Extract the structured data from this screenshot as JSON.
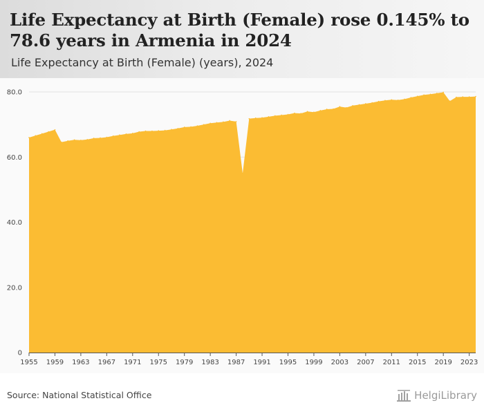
{
  "header": {
    "title": "Life Expectancy at Birth (Female) rose 0.145% to 78.6 years in Armenia in 2024",
    "subtitle": "Life Expectancy at Birth (Female) (years), 2024"
  },
  "footer": {
    "source": "Source: National Statistical Office",
    "brand": "HelgiLibrary"
  },
  "colors": {
    "area": "#FBBC33",
    "grid": "#e3e3e3",
    "axis": "#555555"
  },
  "chart_data": {
    "type": "area",
    "title": "Life Expectancy at Birth (Female) rose 0.145% to 78.6 years in Armenia in 2024",
    "subtitle": "Life Expectancy at Birth (Female) (years), 2024",
    "xlabel": "",
    "ylabel": "",
    "ylim": [
      0,
      80
    ],
    "yticks": [
      0,
      20,
      40,
      60,
      80
    ],
    "ytick_labels": [
      "0",
      "20.0",
      "40.0",
      "60.0",
      "80.0"
    ],
    "xticks": [
      1955,
      1959,
      1963,
      1967,
      1971,
      1975,
      1979,
      1983,
      1987,
      1991,
      1995,
      1999,
      2003,
      2007,
      2011,
      2015,
      2019,
      2023
    ],
    "grid": true,
    "series": [
      {
        "name": "Life Expectancy at Birth (Female)",
        "x": [
          1955,
          1956,
          1957,
          1958,
          1959,
          1960,
          1961,
          1962,
          1963,
          1964,
          1965,
          1966,
          1967,
          1968,
          1969,
          1970,
          1971,
          1972,
          1973,
          1974,
          1975,
          1976,
          1977,
          1978,
          1979,
          1980,
          1981,
          1982,
          1983,
          1984,
          1985,
          1986,
          1987,
          1988,
          1989,
          1990,
          1991,
          1992,
          1993,
          1994,
          1995,
          1996,
          1997,
          1998,
          1999,
          2000,
          2001,
          2002,
          2003,
          2004,
          2005,
          2006,
          2007,
          2008,
          2009,
          2010,
          2011,
          2012,
          2013,
          2014,
          2015,
          2016,
          2017,
          2018,
          2019,
          2020,
          2021,
          2022,
          2023,
          2024
        ],
        "values": [
          66.0,
          66.6,
          67.2,
          67.8,
          68.4,
          64.6,
          65.0,
          65.3,
          65.2,
          65.4,
          65.8,
          65.9,
          66.1,
          66.5,
          66.8,
          67.1,
          67.3,
          67.8,
          68.0,
          68.0,
          68.1,
          68.2,
          68.5,
          68.8,
          69.2,
          69.3,
          69.6,
          70.0,
          70.4,
          70.6,
          70.8,
          71.2,
          70.9,
          55.0,
          71.8,
          72.0,
          72.1,
          72.4,
          72.7,
          72.9,
          73.1,
          73.5,
          73.4,
          74.0,
          73.8,
          74.3,
          74.7,
          74.8,
          75.5,
          75.2,
          75.8,
          76.1,
          76.4,
          76.7,
          77.1,
          77.4,
          77.6,
          77.5,
          77.8,
          78.3,
          78.7,
          79.1,
          79.3,
          79.6,
          79.9,
          77.2,
          78.4,
          78.5,
          78.5,
          78.6
        ]
      }
    ]
  }
}
